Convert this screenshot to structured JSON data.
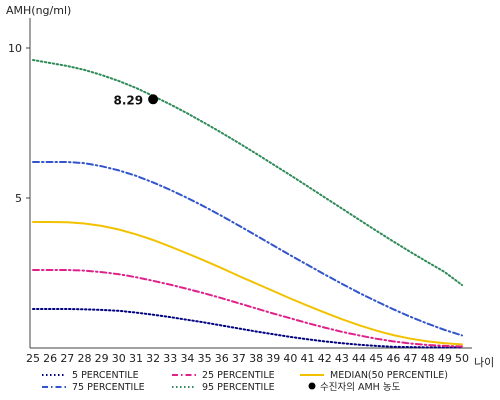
{
  "chart_data": {
    "type": "line",
    "ylabel": "AMH(ng/ml)",
    "xlabel": "나이",
    "xlim": [
      25,
      50
    ],
    "ylim": [
      0,
      11
    ],
    "x_ticks": [
      25,
      26,
      27,
      28,
      29,
      30,
      31,
      32,
      33,
      34,
      35,
      36,
      37,
      38,
      39,
      40,
      41,
      42,
      43,
      44,
      45,
      46,
      47,
      48,
      49,
      50
    ],
    "y_ticks": [
      5,
      10
    ],
    "grid": false,
    "legend_position": "bottom",
    "x": [
      25,
      26,
      27,
      28,
      29,
      30,
      31,
      32,
      33,
      34,
      35,
      36,
      37,
      38,
      39,
      40,
      41,
      42,
      43,
      44,
      45,
      46,
      47,
      48,
      49,
      50
    ],
    "series": [
      {
        "name": "5 PERCENTILE",
        "color": "#000080",
        "dash": "dot",
        "values": [
          1.3,
          1.3,
          1.3,
          1.29,
          1.27,
          1.24,
          1.18,
          1.11,
          1.03,
          0.94,
          0.85,
          0.75,
          0.65,
          0.55,
          0.46,
          0.37,
          0.29,
          0.22,
          0.16,
          0.11,
          0.07,
          0.04,
          0.03,
          0.02,
          0.02,
          0.02
        ]
      },
      {
        "name": "25 PERCENTILE",
        "color": "#e0218a",
        "dash": "dashdot",
        "values": [
          2.6,
          2.6,
          2.6,
          2.58,
          2.53,
          2.46,
          2.36,
          2.24,
          2.11,
          1.97,
          1.82,
          1.66,
          1.49,
          1.32,
          1.15,
          0.99,
          0.83,
          0.68,
          0.54,
          0.42,
          0.31,
          0.22,
          0.15,
          0.1,
          0.07,
          0.05
        ]
      },
      {
        "name": "MEDIAN(50 PERCENTILE)",
        "color": "#f2c200",
        "dash": "solid",
        "values": [
          4.2,
          4.2,
          4.19,
          4.15,
          4.07,
          3.95,
          3.79,
          3.6,
          3.38,
          3.15,
          2.91,
          2.66,
          2.4,
          2.15,
          1.9,
          1.65,
          1.41,
          1.18,
          0.96,
          0.76,
          0.58,
          0.43,
          0.31,
          0.22,
          0.16,
          0.12
        ]
      },
      {
        "name": "75 PERCENTILE",
        "color": "#3355cc",
        "dash": "dashdot",
        "values": [
          6.2,
          6.2,
          6.2,
          6.16,
          6.06,
          5.92,
          5.74,
          5.52,
          5.27,
          5.0,
          4.71,
          4.4,
          4.08,
          3.75,
          3.42,
          3.09,
          2.77,
          2.45,
          2.14,
          1.84,
          1.56,
          1.29,
          1.04,
          0.81,
          0.6,
          0.42
        ]
      },
      {
        "name": "95 PERCENTILE",
        "color": "#2e8b57",
        "dash": "dot",
        "values": [
          9.6,
          9.5,
          9.4,
          9.27,
          9.1,
          8.9,
          8.67,
          8.4,
          8.12,
          7.82,
          7.5,
          7.17,
          6.83,
          6.48,
          6.12,
          5.76,
          5.39,
          5.02,
          4.65,
          4.28,
          3.91,
          3.55,
          3.2,
          2.86,
          2.53,
          2.1
        ]
      }
    ],
    "marker": {
      "name": "수진자의 AMH 농도",
      "x": 32,
      "y": 8.29,
      "label": "8.29",
      "color": "#000000"
    },
    "legend": [
      [
        "5 PERCENTILE",
        "25 PERCENTILE",
        "MEDIAN(50 PERCENTILE)"
      ],
      [
        "75 PERCENTILE",
        "95 PERCENTILE",
        "수진자의 AMH 농도"
      ]
    ]
  }
}
